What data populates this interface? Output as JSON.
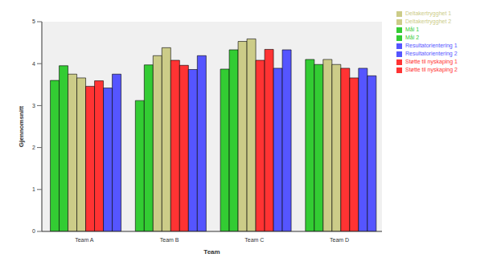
{
  "chart_data": {
    "type": "bar",
    "x_label": "Team",
    "y_label": "Gjennomsnitt",
    "categories": [
      "Team A",
      "Team B",
      "Team C",
      "Team D"
    ],
    "series": [
      {
        "name": "Mål 1",
        "color": "#33cc33",
        "values": [
          3.6,
          3.12,
          3.87,
          4.1
        ]
      },
      {
        "name": "Mål 2",
        "color": "#33cc33",
        "values": [
          3.95,
          3.97,
          4.33,
          3.98
        ]
      },
      {
        "name": "Deltakertrygghet 1",
        "color": "#cccc88",
        "values": [
          3.75,
          4.19,
          4.53,
          4.1
        ]
      },
      {
        "name": "Deltakertrygghet 2",
        "color": "#cccc88",
        "values": [
          3.66,
          4.38,
          4.59,
          3.98
        ]
      },
      {
        "name": "Støtte til nyskaping 1",
        "color": "#ff3333",
        "values": [
          3.46,
          4.08,
          4.08,
          3.89
        ]
      },
      {
        "name": "Støtte til nyskaping 2",
        "color": "#ff3333",
        "values": [
          3.59,
          3.96,
          4.34,
          3.66
        ]
      },
      {
        "name": "Resultatorientering 1",
        "color": "#5555ff",
        "values": [
          3.42,
          3.86,
          3.89,
          3.89
        ]
      },
      {
        "name": "Resultatorientering 2",
        "color": "#5555ff",
        "values": [
          3.75,
          4.19,
          4.33,
          3.71
        ]
      }
    ],
    "ylim": [
      0,
      5
    ],
    "yticks": [
      0,
      1,
      2,
      3,
      4,
      5
    ],
    "grid": false,
    "legend": "upper right"
  }
}
